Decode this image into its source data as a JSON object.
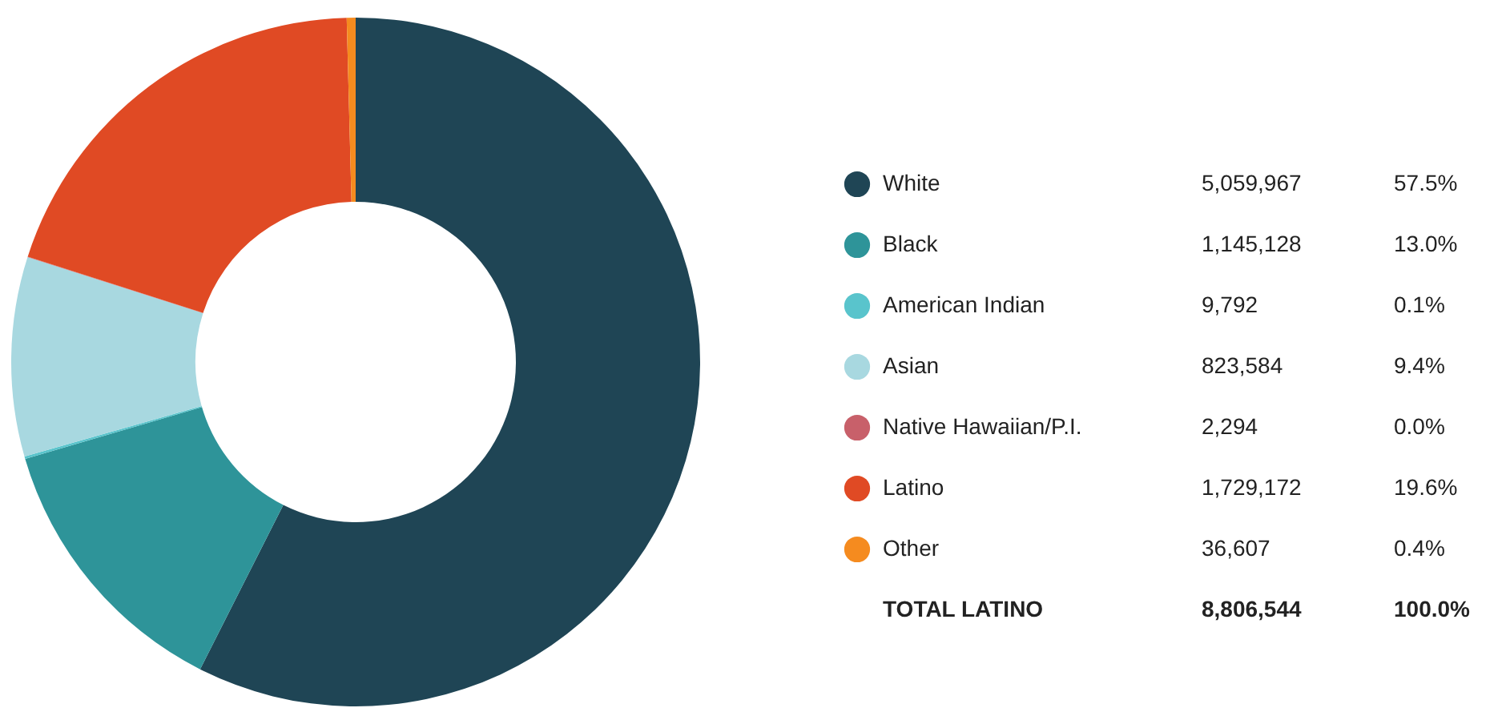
{
  "chart_data": {
    "type": "donut",
    "categories": [
      "White",
      "Black",
      "American Indian",
      "Asian",
      "Native Hawaiian/P.I.",
      "Latino",
      "Other"
    ],
    "values": [
      5059967,
      1145128,
      9792,
      823584,
      2294,
      1729172,
      36607
    ],
    "value_labels": [
      "5,059,967",
      "1,145,128",
      "9,792",
      "823,584",
      "2,294",
      "1,729,172",
      "36,607"
    ],
    "colors": [
      "#1f4555",
      "#2e9499",
      "#59c4cc",
      "#a8d8e0",
      "#c8606a",
      "#e04a24",
      "#f58b1f"
    ],
    "annotations": [
      "57.5%",
      "13.0%",
      "0.1%",
      "9.4%",
      "0.0%",
      "19.6%",
      "0.4%",
      "TOTAL LATINO",
      "8,806,544",
      "100.0%"
    ],
    "legend": "right"
  }
}
